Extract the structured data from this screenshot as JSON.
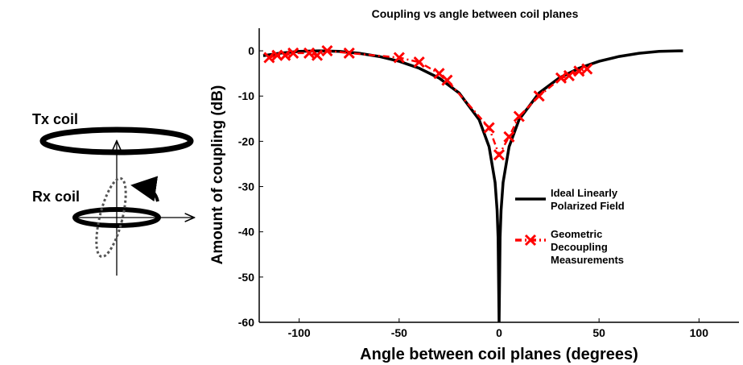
{
  "diagram": {
    "tx_label": "Tx coil",
    "rx_label": "Rx coil"
  },
  "chart_data": {
    "type": "line",
    "title": "Coupling vs angle between coil planes",
    "x_label": "Angle between coil planes (degrees)",
    "y_label": "Amount of coupling (dB)",
    "xlim": [
      -120,
      120
    ],
    "ylim": [
      -60,
      5
    ],
    "xticks": [
      -100,
      -50,
      0,
      50,
      100
    ],
    "yticks": [
      -60,
      -50,
      -40,
      -30,
      -20,
      -10,
      0
    ],
    "legend": "right",
    "series": [
      {
        "name": "Ideal Linearly Polarized Field",
        "color": "#000000",
        "style": "solid",
        "x": [
          -118,
          -110,
          -100,
          -90,
          -80,
          -70,
          -60,
          -50,
          -40,
          -30,
          -20,
          -10,
          -5,
          -2,
          -1,
          -0.5,
          0,
          0.5,
          1,
          2,
          5,
          10,
          20,
          30,
          40,
          50,
          60,
          70,
          80,
          90,
          92
        ],
        "values": [
          -1.08,
          -0.54,
          -0.13,
          0,
          -0.13,
          -0.54,
          -1.25,
          -2.32,
          -3.84,
          -6.02,
          -9.32,
          -15.2,
          -21.2,
          -29.1,
          -35.2,
          -41.2,
          -60,
          -41.2,
          -35.2,
          -29.1,
          -21.2,
          -15.2,
          -9.32,
          -6.02,
          -3.84,
          -2.32,
          -1.25,
          -0.54,
          -0.13,
          0,
          -0.01
        ]
      },
      {
        "name": "Geometric Decoupling Measurements",
        "color": "#ff0000",
        "style": "dash-dot",
        "marker": "x",
        "x": [
          -115,
          -111,
          -107,
          -103,
          -95,
          -91,
          -86,
          -75,
          -50,
          -40,
          -30,
          -26,
          -5,
          0,
          5,
          10,
          20,
          31,
          35,
          40,
          44
        ],
        "values": [
          -1.5,
          -1,
          -1,
          -0.5,
          -0.5,
          -1,
          0,
          -0.5,
          -1.5,
          -2.5,
          -5,
          -6.5,
          -17,
          -23,
          -19,
          -14.5,
          -10,
          -6,
          -5.5,
          -4.5,
          -4
        ]
      }
    ]
  }
}
